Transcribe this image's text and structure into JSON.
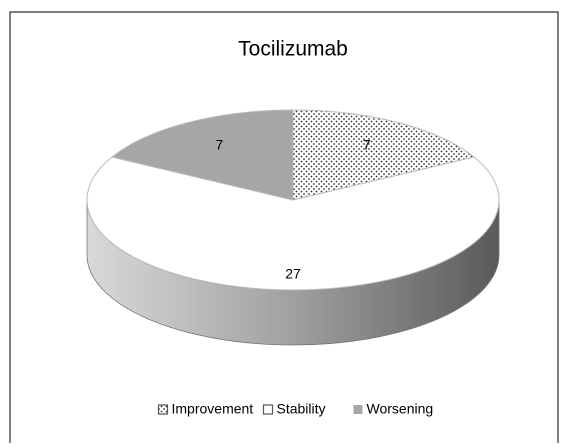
{
  "chart_data": {
    "type": "pie3d",
    "title": "Tocilizumab",
    "categories": [
      "Improvement",
      "Stability",
      "Worsening"
    ],
    "values": [
      7,
      27,
      7
    ],
    "colors": [
      "#ffffff",
      "#ffffff",
      "#a6a6a6"
    ],
    "patterns": [
      "dots",
      "none",
      "none"
    ],
    "legend": "bottom"
  }
}
